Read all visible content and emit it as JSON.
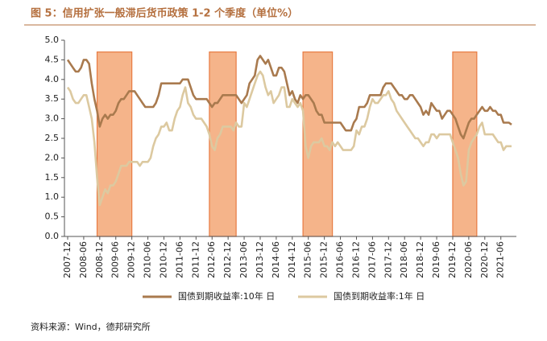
{
  "chart_data": {
    "type": "line",
    "title": "图 5：信用扩张一般滞后货币政策 1-2 个季度（单位%）",
    "source": "资料来源：Wind，德邦研究所",
    "x": [
      "2007-12",
      "2008-01",
      "2008-02",
      "2008-03",
      "2008-04",
      "2008-05",
      "2008-06",
      "2008-07",
      "2008-08",
      "2008-09",
      "2008-10",
      "2008-11",
      "2008-12",
      "2009-01",
      "2009-02",
      "2009-03",
      "2009-04",
      "2009-05",
      "2009-06",
      "2009-07",
      "2009-08",
      "2009-09",
      "2009-10",
      "2009-11",
      "2009-12",
      "2010-01",
      "2010-02",
      "2010-03",
      "2010-04",
      "2010-05",
      "2010-06",
      "2010-07",
      "2010-08",
      "2010-09",
      "2010-10",
      "2010-11",
      "2010-12",
      "2011-01",
      "2011-02",
      "2011-03",
      "2011-04",
      "2011-05",
      "2011-06",
      "2011-07",
      "2011-08",
      "2011-09",
      "2011-10",
      "2011-11",
      "2011-12",
      "2012-01",
      "2012-02",
      "2012-03",
      "2012-04",
      "2012-05",
      "2012-06",
      "2012-07",
      "2012-08",
      "2012-09",
      "2012-10",
      "2012-11",
      "2012-12",
      "2013-01",
      "2013-02",
      "2013-03",
      "2013-04",
      "2013-05",
      "2013-06",
      "2013-07",
      "2013-08",
      "2013-09",
      "2013-10",
      "2013-11",
      "2013-12",
      "2014-01",
      "2014-02",
      "2014-03",
      "2014-04",
      "2014-05",
      "2014-06",
      "2014-07",
      "2014-08",
      "2014-09",
      "2014-10",
      "2014-11",
      "2014-12",
      "2015-01",
      "2015-02",
      "2015-03",
      "2015-04",
      "2015-05",
      "2015-06",
      "2015-07",
      "2015-08",
      "2015-09",
      "2015-10",
      "2015-11",
      "2015-12",
      "2016-01",
      "2016-02",
      "2016-03",
      "2016-04",
      "2016-05",
      "2016-06",
      "2016-07",
      "2016-08",
      "2016-09",
      "2016-10",
      "2016-11",
      "2016-12",
      "2017-01",
      "2017-02",
      "2017-03",
      "2017-04",
      "2017-05",
      "2017-06",
      "2017-07",
      "2017-08",
      "2017-09",
      "2017-10",
      "2017-11",
      "2017-12",
      "2018-01",
      "2018-02",
      "2018-03",
      "2018-04",
      "2018-05",
      "2018-06",
      "2018-07",
      "2018-08",
      "2018-09",
      "2018-10",
      "2018-11",
      "2018-12",
      "2019-01",
      "2019-02",
      "2019-03",
      "2019-04",
      "2019-05",
      "2019-06",
      "2019-07",
      "2019-08",
      "2019-09",
      "2019-10",
      "2019-11",
      "2019-12",
      "2020-01",
      "2020-02",
      "2020-03",
      "2020-04",
      "2020-05",
      "2020-06",
      "2020-07",
      "2020-08",
      "2020-09",
      "2020-10",
      "2020-11",
      "2020-12",
      "2021-01",
      "2021-02",
      "2021-03",
      "2021-04",
      "2021-05",
      "2021-06",
      "2021-07",
      "2021-08",
      "2021-09",
      "2021-10"
    ],
    "series": [
      {
        "name": "国债到期收益率:10年 日",
        "color": "#a97a4e",
        "values": [
          4.5,
          4.4,
          4.3,
          4.2,
          4.2,
          4.3,
          4.5,
          4.5,
          4.4,
          3.9,
          3.5,
          3.2,
          2.8,
          3.0,
          3.1,
          3.0,
          3.1,
          3.1,
          3.2,
          3.4,
          3.5,
          3.5,
          3.6,
          3.7,
          3.7,
          3.7,
          3.6,
          3.5,
          3.4,
          3.3,
          3.3,
          3.3,
          3.3,
          3.4,
          3.6,
          3.9,
          3.9,
          3.9,
          3.9,
          3.9,
          3.9,
          3.9,
          3.9,
          4.0,
          4.0,
          4.0,
          3.8,
          3.6,
          3.5,
          3.5,
          3.5,
          3.5,
          3.5,
          3.4,
          3.3,
          3.4,
          3.4,
          3.5,
          3.6,
          3.6,
          3.6,
          3.6,
          3.6,
          3.6,
          3.5,
          3.4,
          3.5,
          3.6,
          3.9,
          4.0,
          4.1,
          4.5,
          4.6,
          4.5,
          4.4,
          4.5,
          4.3,
          4.1,
          4.1,
          4.3,
          4.3,
          4.2,
          3.9,
          3.6,
          3.7,
          3.5,
          3.4,
          3.6,
          3.5,
          3.6,
          3.6,
          3.5,
          3.4,
          3.2,
          3.1,
          3.1,
          2.9,
          2.9,
          2.9,
          2.9,
          2.9,
          2.9,
          2.9,
          2.8,
          2.7,
          2.7,
          2.7,
          2.9,
          3.0,
          3.3,
          3.3,
          3.3,
          3.4,
          3.6,
          3.6,
          3.6,
          3.6,
          3.6,
          3.8,
          3.9,
          3.9,
          3.9,
          3.8,
          3.7,
          3.6,
          3.6,
          3.5,
          3.5,
          3.6,
          3.6,
          3.5,
          3.4,
          3.3,
          3.1,
          3.2,
          3.1,
          3.4,
          3.3,
          3.2,
          3.2,
          3.0,
          3.1,
          3.2,
          3.2,
          3.1,
          3.0,
          2.8,
          2.6,
          2.5,
          2.7,
          2.9,
          3.0,
          3.0,
          3.1,
          3.2,
          3.3,
          3.2,
          3.2,
          3.3,
          3.2,
          3.2,
          3.1,
          3.1,
          2.9,
          2.9,
          2.9,
          2.85
        ]
      },
      {
        "name": "国债到期收益率:1年 日",
        "color": "#dcc9a0",
        "values": [
          3.8,
          3.7,
          3.5,
          3.4,
          3.4,
          3.5,
          3.6,
          3.6,
          3.3,
          3.0,
          2.4,
          1.5,
          0.8,
          1.0,
          1.2,
          1.1,
          1.3,
          1.3,
          1.4,
          1.6,
          1.8,
          1.8,
          1.8,
          1.9,
          1.9,
          1.9,
          1.9,
          1.8,
          1.9,
          1.9,
          1.9,
          2.0,
          2.3,
          2.5,
          2.6,
          2.8,
          2.8,
          2.9,
          2.7,
          2.7,
          3.0,
          3.2,
          3.3,
          3.6,
          3.8,
          3.4,
          3.3,
          3.1,
          3.0,
          3.0,
          3.0,
          2.9,
          2.8,
          2.6,
          2.3,
          2.2,
          2.5,
          2.6,
          2.8,
          2.8,
          2.8,
          2.8,
          2.7,
          2.9,
          2.8,
          2.8,
          3.4,
          3.3,
          3.5,
          3.7,
          3.9,
          4.1,
          4.2,
          4.1,
          3.8,
          3.6,
          3.7,
          3.4,
          3.5,
          3.6,
          3.8,
          3.8,
          3.3,
          3.3,
          3.5,
          3.4,
          3.3,
          3.4,
          3.2,
          2.3,
          2.0,
          2.3,
          2.4,
          2.4,
          2.4,
          2.5,
          2.3,
          2.3,
          2.2,
          2.4,
          2.3,
          2.4,
          2.3,
          2.2,
          2.2,
          2.2,
          2.2,
          2.3,
          2.7,
          2.6,
          2.8,
          2.8,
          3.0,
          3.3,
          3.5,
          3.4,
          3.4,
          3.5,
          3.6,
          3.6,
          3.7,
          3.5,
          3.4,
          3.2,
          3.1,
          3.0,
          2.9,
          2.8,
          2.7,
          2.6,
          2.5,
          2.5,
          2.4,
          2.3,
          2.4,
          2.4,
          2.6,
          2.6,
          2.5,
          2.6,
          2.6,
          2.6,
          2.6,
          2.6,
          2.4,
          2.2,
          2.0,
          1.6,
          1.3,
          1.4,
          2.2,
          2.4,
          2.5,
          2.6,
          2.8,
          2.9,
          2.6,
          2.6,
          2.6,
          2.6,
          2.5,
          2.4,
          2.4,
          2.2,
          2.3,
          2.3,
          2.3
        ]
      }
    ],
    "shaded": [
      {
        "start": "2008-11",
        "end": "2009-12"
      },
      {
        "start": "2012-05",
        "end": "2013-03"
      },
      {
        "start": "2015-04",
        "end": "2016-03"
      },
      {
        "start": "2019-12",
        "end": "2020-09"
      }
    ],
    "shade_color": "#f5b48a",
    "xticks": [
      "2007-12",
      "2008-06",
      "2008-12",
      "2009-06",
      "2009-12",
      "2010-06",
      "2010-12",
      "2011-06",
      "2011-12",
      "2012-06",
      "2012-12",
      "2013-06",
      "2013-12",
      "2014-06",
      "2014-12",
      "2015-06",
      "2015-12",
      "2016-06",
      "2016-12",
      "2017-06",
      "2017-12",
      "2018-06",
      "2018-12",
      "2019-06",
      "2019-12",
      "2020-06",
      "2020-12",
      "2021-06"
    ],
    "ylim": [
      0,
      5
    ],
    "yticks": [
      {
        "value": 0,
        "label": "0.0"
      },
      {
        "value": 0.5,
        "label": "0.5"
      },
      {
        "value": 1,
        "label": "1.0"
      },
      {
        "value": 1.5,
        "label": "1.5"
      },
      {
        "value": 2,
        "label": "2.0"
      },
      {
        "value": 2.5,
        "label": "2.5"
      },
      {
        "value": 3,
        "label": "3.0"
      },
      {
        "value": 3.5,
        "label": "3.5"
      },
      {
        "value": 4,
        "label": "4.0"
      },
      {
        "value": 4.5,
        "label": "4.5"
      },
      {
        "value": 5,
        "label": "5.0"
      }
    ],
    "grid": false,
    "legend": "bottom"
  }
}
